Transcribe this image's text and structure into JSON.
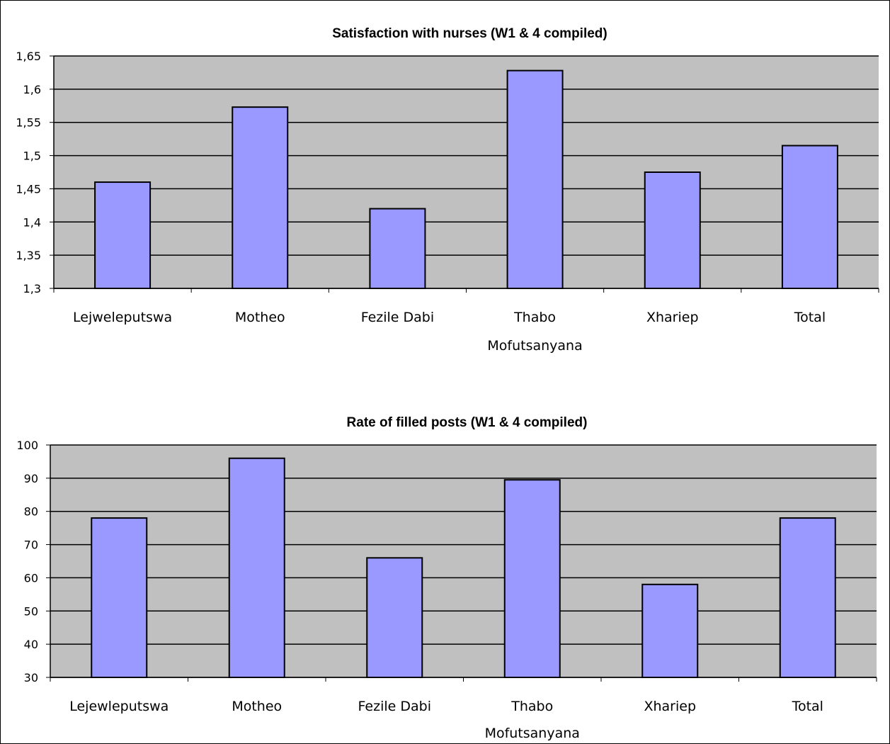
{
  "colors": {
    "plot_background": "#c0c0c0",
    "bar_fill": "#9999ff",
    "bar_stroke": "#000000",
    "gridline": "#000000"
  },
  "chart_data": [
    {
      "type": "bar",
      "title": "Satisfaction with nurses (W1 & 4 compiled)",
      "categories": [
        [
          "Lejweleputswa"
        ],
        [
          "Motheo"
        ],
        [
          "Fezile Dabi"
        ],
        [
          "Thabo",
          "Mofutsanyana"
        ],
        [
          "Xhariep"
        ],
        [
          "Total"
        ]
      ],
      "values": [
        1.46,
        1.573,
        1.42,
        1.628,
        1.475,
        1.515
      ],
      "ylim": [
        1.3,
        1.65
      ],
      "yticks": [
        1.3,
        1.35,
        1.4,
        1.45,
        1.5,
        1.55,
        1.6,
        1.65
      ],
      "ytick_labels": [
        "1,3",
        "1,35",
        "1,4",
        "1,45",
        "1,5",
        "1,55",
        "1,6",
        "1,65"
      ],
      "grid": true,
      "legend": "none"
    },
    {
      "type": "bar",
      "title": "Rate of filled posts (W1 & 4 compiled)",
      "categories": [
        [
          "Lejewleputswa"
        ],
        [
          "Motheo"
        ],
        [
          "Fezile Dabi"
        ],
        [
          "Thabo",
          "Mofutsanyana"
        ],
        [
          "Xhariep"
        ],
        [
          "Total"
        ]
      ],
      "values": [
        78,
        96,
        66,
        89.5,
        58,
        78
      ],
      "ylim": [
        30,
        100
      ],
      "yticks": [
        30,
        40,
        50,
        60,
        70,
        80,
        90,
        100
      ],
      "ytick_labels": [
        "30",
        "40",
        "50",
        "60",
        "70",
        "80",
        "90",
        "100"
      ],
      "grid": true,
      "legend": "none"
    }
  ]
}
